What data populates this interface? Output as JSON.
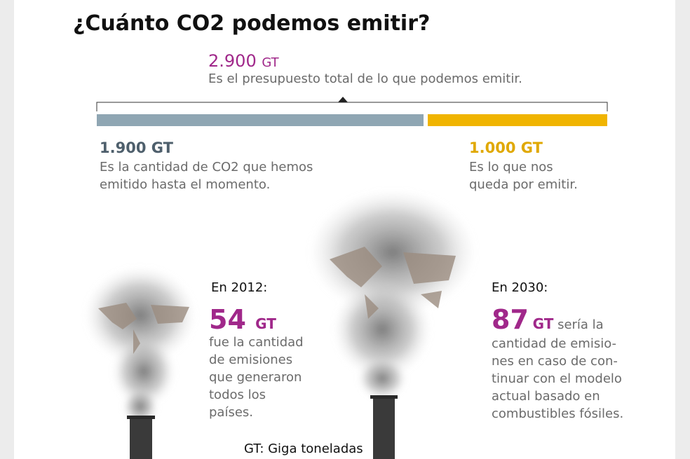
{
  "title": "¿Cuánto CO2 podemos emitir?",
  "budget": {
    "value": "2.900",
    "unit": "GT",
    "text": "Es el presupuesto total de lo que podemos emitir."
  },
  "emitted": {
    "value": "1.900 GT",
    "lines": [
      "Es la cantidad de CO2 que hemos",
      "emitido hasta el momento."
    ]
  },
  "remaining": {
    "value": "1.000 GT",
    "lines": [
      "Es lo que nos",
      "queda por emitir."
    ]
  },
  "year_2012": {
    "heading": "En 2012:",
    "value": "54",
    "unit": "GT",
    "lines": [
      "fue la cantidad",
      "de emisiones",
      "que generaron",
      "todos los",
      "países."
    ]
  },
  "year_2030": {
    "heading": "En 2030:",
    "value": "87",
    "unit": "GT",
    "lead": "sería la",
    "lines": [
      "cantidad de emisio-",
      "nes en caso de con-",
      "tinuar con el modelo",
      "actual basado en",
      "combustibles fósiles."
    ]
  },
  "footnote": "GT: Giga toneladas"
}
